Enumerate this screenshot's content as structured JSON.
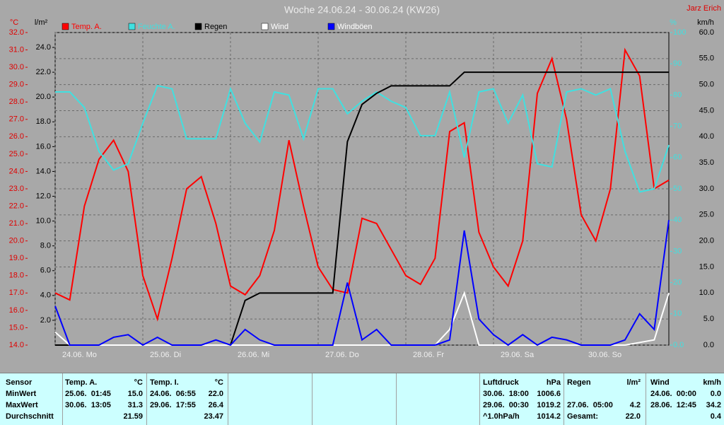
{
  "chart_data": {
    "type": "line",
    "title": "Woche 24.06.24 - 30.06.24 (KW26)",
    "author": "Jarz Erich",
    "ylabel": "°C",
    "y3label": "l/m²",
    "y4label": "%",
    "y2label": "km/h",
    "x": [
      0,
      4,
      8,
      12,
      16,
      20,
      24,
      28,
      32,
      36,
      40,
      44,
      48,
      52,
      56,
      60,
      64,
      68,
      72,
      76,
      80,
      84,
      88,
      92,
      96,
      100,
      104,
      108,
      112,
      116,
      120,
      124,
      128,
      132,
      136,
      140,
      144,
      148,
      152,
      156,
      160,
      164,
      168
    ],
    "xlim": [
      0,
      168
    ],
    "xticks": [
      {
        "value": 0,
        "label": "24.06.  Mo"
      },
      {
        "value": 24,
        "label": "25.06.  Di"
      },
      {
        "value": 48,
        "label": "26.06.  Mi"
      },
      {
        "value": 72,
        "label": "27.06.  Do"
      },
      {
        "value": 96,
        "label": "28.06.  Fr"
      },
      {
        "value": 120,
        "label": "29.06.  Sa"
      },
      {
        "value": 144,
        "label": "30.06.  So"
      }
    ],
    "ylim": [
      14,
      32
    ],
    "yticks": [
      {
        "value": 14,
        "label": "14.0"
      },
      {
        "value": 15,
        "label": "15.0"
      },
      {
        "value": 16,
        "label": "16.0"
      },
      {
        "value": 17,
        "label": "17.0"
      },
      {
        "value": 18,
        "label": "18.0"
      },
      {
        "value": 19,
        "label": "19.0"
      },
      {
        "value": 20,
        "label": "20.0"
      },
      {
        "value": 21,
        "label": "21.0"
      },
      {
        "value": 22,
        "label": "22.0"
      },
      {
        "value": 23,
        "label": "23.0"
      },
      {
        "value": 24,
        "label": "24.0"
      },
      {
        "value": 25,
        "label": "25.0"
      },
      {
        "value": 26,
        "label": "26.0"
      },
      {
        "value": 27,
        "label": "27.0"
      },
      {
        "value": 28,
        "label": "28.0"
      },
      {
        "value": 29,
        "label": "29.0"
      },
      {
        "value": 30,
        "label": "30.0"
      },
      {
        "value": 31,
        "label": "31.0"
      },
      {
        "value": 32,
        "label": "32.0"
      }
    ],
    "y3lim": [
      0,
      25.2
    ],
    "y3ticks": [
      {
        "value": 2,
        "label": "2.0"
      },
      {
        "value": 4,
        "label": "4.0"
      },
      {
        "value": 6,
        "label": "6.0"
      },
      {
        "value": 8,
        "label": "8.0"
      },
      {
        "value": 10,
        "label": "10.0"
      },
      {
        "value": 12,
        "label": "12.0"
      },
      {
        "value": 14,
        "label": "14.0"
      },
      {
        "value": 16,
        "label": "16.0"
      },
      {
        "value": 18,
        "label": "18.0"
      },
      {
        "value": 20,
        "label": "20.0"
      },
      {
        "value": 22,
        "label": "22.0"
      },
      {
        "value": 24,
        "label": "24.0"
      }
    ],
    "y4lim": [
      0,
      100
    ],
    "y4ticks": [
      {
        "value": 0,
        "label": "0.0"
      },
      10,
      20,
      30,
      40,
      50,
      60,
      70,
      80,
      90,
      100
    ],
    "y2lim": [
      0,
      60
    ],
    "y2ticks": [
      {
        "value": 0,
        "label": "0.0"
      },
      {
        "value": 5,
        "label": "5.0"
      },
      {
        "value": 10,
        "label": "10.0"
      },
      {
        "value": 15,
        "label": "15.0"
      },
      {
        "value": 20,
        "label": "20.0"
      },
      {
        "value": 25,
        "label": "25.0"
      },
      {
        "value": 30,
        "label": "30.0"
      },
      {
        "value": 35,
        "label": "35.0"
      },
      {
        "value": 40,
        "label": "40.0"
      },
      {
        "value": 45,
        "label": "45.0"
      },
      {
        "value": 50,
        "label": "50.0"
      },
      {
        "value": 55,
        "label": "55.0"
      },
      {
        "value": 60,
        "label": "60.0"
      }
    ],
    "grid": true,
    "series": [
      {
        "name": "Temp. A.",
        "color": "#ff0000",
        "axis": "y",
        "values": [
          17.0,
          16.6,
          22.0,
          24.7,
          25.8,
          24.0,
          18.0,
          15.5,
          19.0,
          23.0,
          23.7,
          21.0,
          17.4,
          16.9,
          18.0,
          20.6,
          25.8,
          22.0,
          18.5,
          17.2,
          17.0,
          21.3,
          21.0,
          19.5,
          18.0,
          17.5,
          19.0,
          26.3,
          26.8,
          20.5,
          18.5,
          17.4,
          20.0,
          28.5,
          30.5,
          27.0,
          21.5,
          20.0,
          23.0,
          31.0,
          29.5,
          23.0,
          23.5
        ]
      },
      {
        "name": "Feuchte A.",
        "color": "#40e0e0",
        "axis": "y4",
        "values": [
          81,
          81,
          76,
          62,
          56,
          58,
          71,
          83,
          82,
          66,
          66,
          66,
          82,
          71,
          65,
          81,
          80,
          66,
          82,
          82,
          74,
          78,
          81,
          78,
          76,
          67,
          67,
          81,
          60,
          81,
          82,
          71,
          80,
          58,
          57,
          81,
          82,
          80,
          82,
          62,
          49,
          50,
          64
        ]
      },
      {
        "name": "Regen",
        "color": "#000000",
        "axis": "y3",
        "values": [
          0,
          0,
          0,
          0,
          0,
          0,
          0,
          0,
          0,
          0,
          0,
          0,
          0,
          3.6,
          4.2,
          4.2,
          4.2,
          4.2,
          4.2,
          4.2,
          16.4,
          19.4,
          20.3,
          20.9,
          20.9,
          20.9,
          20.9,
          20.9,
          22.0,
          22.0,
          22.0,
          22.0,
          22.0,
          22.0,
          22.0,
          22.0,
          22.0,
          22.0,
          22.0,
          22.0,
          22.0,
          22.0,
          22.0
        ]
      },
      {
        "name": "Wind",
        "color": "#ffffff",
        "axis": "y2",
        "values": [
          2.5,
          0,
          0,
          0,
          0,
          0,
          0,
          0,
          0,
          0,
          0,
          0,
          0,
          0,
          0,
          0,
          0,
          0,
          0,
          0,
          0,
          0,
          0,
          0,
          0,
          0,
          0,
          3,
          10,
          0,
          0,
          0,
          0,
          0,
          0,
          0,
          0,
          0,
          0,
          0,
          0.5,
          1,
          10
        ]
      },
      {
        "name": "Windböen",
        "color": "#0000ff",
        "axis": "y2",
        "values": [
          7.5,
          0,
          0,
          0,
          1.5,
          2,
          0,
          1.5,
          0,
          0,
          0,
          1,
          0,
          3,
          1,
          0,
          0,
          0,
          0,
          0,
          12,
          1,
          3,
          0,
          0,
          0,
          0,
          1,
          22,
          5,
          2,
          0,
          2,
          0,
          1.5,
          1,
          0,
          0,
          0,
          1,
          6,
          3,
          24
        ]
      }
    ]
  },
  "table": {
    "row_labels": [
      "Sensor",
      "MinWert",
      "MaxWert",
      "Durchschnitt"
    ],
    "sections": [
      {
        "title": "Temp. A.",
        "unit": "°C",
        "rows": [
          {
            "when": "25.06.  01:45",
            "value": "15.0"
          },
          {
            "when": "30.06.  13:05",
            "value": "31.3"
          },
          {
            "value": "21.59"
          }
        ]
      },
      {
        "title": "Temp. I.",
        "unit": "°C",
        "rows": [
          {
            "when": "24.06.  06:55",
            "value": "22.0"
          },
          {
            "when": "29.06.  17:55",
            "value": "26.4"
          },
          {
            "value": "23.47"
          }
        ]
      },
      {
        "title": "Luftdruck",
        "unit": "hPa",
        "rows": [
          {
            "when": "30.06.  18:00",
            "value": "1006.6"
          },
          {
            "when": "29.06.  00:30",
            "value": "1019.2"
          },
          {
            "when": "^1.0hPa/h",
            "value": "1014.2"
          }
        ]
      },
      {
        "title": "Regen",
        "unit": "l/m²",
        "rows": [
          null,
          {
            "when": "27.06.  05:00",
            "value": "4.2"
          },
          {
            "when": "Gesamt:",
            "value": "22.0"
          }
        ]
      },
      {
        "title": "Wind",
        "unit": "km/h",
        "rows": [
          {
            "when": "24.06.  00:00",
            "value": "0.0"
          },
          {
            "when": "28.06.  12:45",
            "value": "34.2"
          },
          {
            "value": "0.4"
          }
        ]
      }
    ]
  }
}
